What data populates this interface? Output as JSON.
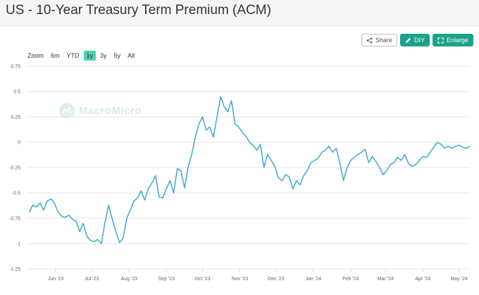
{
  "header": {
    "title": "US - 10-Year Treasury Term Premium (ACM)"
  },
  "toolbar": {
    "share_label": "Share",
    "diy_label": "DIY",
    "enlarge_label": "Enlarge"
  },
  "zoom": {
    "label": "Zoom",
    "options": [
      "6m",
      "YTD",
      "1y",
      "3y",
      "5y",
      "All"
    ],
    "active": "1y"
  },
  "watermark": {
    "text": "MacroMicro"
  },
  "colors": {
    "line": "#3fa9cc",
    "accent": "#1aa388",
    "active_zoom": "#4fd1b0",
    "grid": "#e6e6e6"
  },
  "chart_data": {
    "type": "line",
    "title": "US - 10-Year Treasury Term Premium (ACM)",
    "xlabel": "",
    "ylabel": "",
    "ylim": [
      -1.25,
      0.75
    ],
    "yticks": [
      0.75,
      0.5,
      0.25,
      0,
      -0.25,
      -0.5,
      -0.75,
      -1,
      -1.25
    ],
    "ytick_labels": [
      "0.75",
      "0.5",
      "0.25",
      "0",
      "-0.25",
      "-0.5",
      "-0.75",
      "-1",
      "-1.25"
    ],
    "xlim": [
      "2023-05-08",
      "2024-05-10"
    ],
    "xticks": [
      "2023-06-01",
      "2023-07-01",
      "2023-08-01",
      "2023-09-01",
      "2023-10-01",
      "2023-11-01",
      "2023-12-01",
      "2024-01-01",
      "2024-02-01",
      "2024-03-01",
      "2024-04-01",
      "2024-05-01"
    ],
    "xtick_labels": [
      "Jun '23",
      "Jul '23",
      "Aug '23",
      "Sep '23",
      "Oct '23",
      "Nov '23",
      "Dec '23",
      "Jan '24",
      "Feb '24",
      "Mar '24",
      "Apr '24",
      "May '24"
    ],
    "grid": true,
    "legend": "none",
    "series": [
      {
        "x": [
          "2023-05-10",
          "2023-05-13",
          "2023-05-16",
          "2023-05-19",
          "2023-05-22",
          "2023-05-25",
          "2023-05-28",
          "2023-05-31",
          "2023-06-03",
          "2023-06-06",
          "2023-06-09",
          "2023-06-12",
          "2023-06-15",
          "2023-06-18",
          "2023-06-21",
          "2023-06-24",
          "2023-06-27",
          "2023-06-30",
          "2023-07-03",
          "2023-07-06",
          "2023-07-09",
          "2023-07-12",
          "2023-07-15",
          "2023-07-18",
          "2023-07-21",
          "2023-07-24",
          "2023-07-27",
          "2023-07-30",
          "2023-08-02",
          "2023-08-05",
          "2023-08-08",
          "2023-08-11",
          "2023-08-14",
          "2023-08-17",
          "2023-08-20",
          "2023-08-23",
          "2023-08-26",
          "2023-08-29",
          "2023-09-01",
          "2023-09-04",
          "2023-09-07",
          "2023-09-10",
          "2023-09-13",
          "2023-09-16",
          "2023-09-19",
          "2023-09-22",
          "2023-09-25",
          "2023-09-28",
          "2023-10-01",
          "2023-10-04",
          "2023-10-07",
          "2023-10-10",
          "2023-10-13",
          "2023-10-16",
          "2023-10-19",
          "2023-10-22",
          "2023-10-25",
          "2023-10-28",
          "2023-10-31",
          "2023-11-03",
          "2023-11-06",
          "2023-11-09",
          "2023-11-12",
          "2023-11-15",
          "2023-11-18",
          "2023-11-21",
          "2023-11-24",
          "2023-11-27",
          "2023-11-30",
          "2023-12-03",
          "2023-12-06",
          "2023-12-09",
          "2023-12-12",
          "2023-12-15",
          "2023-12-18",
          "2023-12-21",
          "2023-12-24",
          "2023-12-27",
          "2023-12-30",
          "2024-01-02",
          "2024-01-05",
          "2024-01-08",
          "2024-01-11",
          "2024-01-14",
          "2024-01-17",
          "2024-01-20",
          "2024-01-23",
          "2024-01-26",
          "2024-01-29",
          "2024-02-01",
          "2024-02-04",
          "2024-02-07",
          "2024-02-10",
          "2024-02-13",
          "2024-02-16",
          "2024-02-19",
          "2024-02-22",
          "2024-02-25",
          "2024-02-28",
          "2024-03-02",
          "2024-03-05",
          "2024-03-08",
          "2024-03-11",
          "2024-03-14",
          "2024-03-17",
          "2024-03-20",
          "2024-03-23",
          "2024-03-26",
          "2024-03-29",
          "2024-04-01",
          "2024-04-04",
          "2024-04-07",
          "2024-04-10",
          "2024-04-13",
          "2024-04-16",
          "2024-04-19",
          "2024-04-22",
          "2024-04-25",
          "2024-04-28",
          "2024-05-01",
          "2024-05-04",
          "2024-05-07",
          "2024-05-10"
        ],
        "values": [
          -0.69,
          -0.62,
          -0.64,
          -0.6,
          -0.67,
          -0.58,
          -0.56,
          -0.6,
          -0.69,
          -0.73,
          -0.74,
          -0.72,
          -0.76,
          -0.78,
          -0.88,
          -0.8,
          -0.93,
          -0.97,
          -0.98,
          -0.96,
          -1.0,
          -0.79,
          -0.62,
          -0.76,
          -0.88,
          -0.99,
          -0.95,
          -0.75,
          -0.67,
          -0.58,
          -0.55,
          -0.48,
          -0.57,
          -0.46,
          -0.4,
          -0.33,
          -0.54,
          -0.55,
          -0.46,
          -0.38,
          -0.5,
          -0.26,
          -0.28,
          -0.45,
          -0.25,
          -0.12,
          0.05,
          0.18,
          0.25,
          0.12,
          0.15,
          0.05,
          0.25,
          0.45,
          0.35,
          0.3,
          0.41,
          0.18,
          0.15,
          0.1,
          0.06,
          0.0,
          -0.03,
          -0.08,
          -0.02,
          -0.25,
          -0.12,
          -0.18,
          -0.24,
          -0.35,
          -0.38,
          -0.32,
          -0.34,
          -0.46,
          -0.38,
          -0.42,
          -0.33,
          -0.28,
          -0.2,
          -0.18,
          -0.16,
          -0.1,
          -0.08,
          -0.04,
          -0.1,
          -0.06,
          -0.2,
          -0.38,
          -0.25,
          -0.18,
          -0.15,
          -0.12,
          -0.1,
          -0.07,
          -0.2,
          -0.14,
          -0.19,
          -0.25,
          -0.32,
          -0.28,
          -0.22,
          -0.2,
          -0.15,
          -0.18,
          -0.12,
          -0.21,
          -0.24,
          -0.22,
          -0.18,
          -0.14,
          -0.15,
          -0.1,
          -0.05,
          0.0,
          -0.02,
          -0.06,
          -0.04,
          -0.06,
          -0.04,
          -0.03,
          -0.05,
          -0.06,
          -0.04
        ]
      }
    ]
  }
}
